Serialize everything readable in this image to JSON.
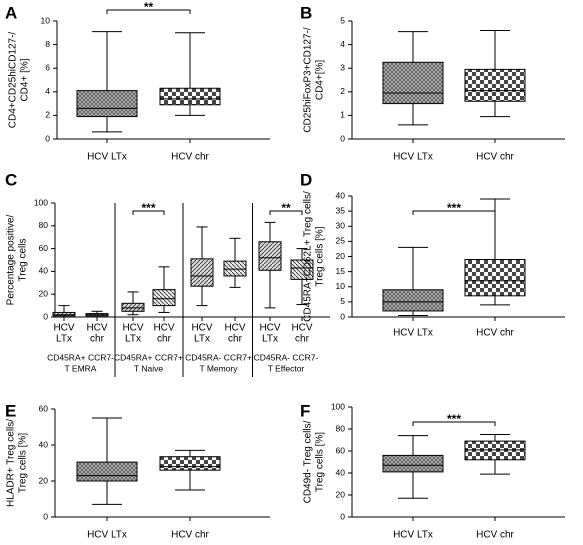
{
  "chart_data": [
    {
      "type": "box",
      "panel": "A",
      "ylabel": [
        "CD4+CD25hiCD127-/",
        "CD4+ [%]"
      ],
      "categories": [
        "HCV LTx",
        "HCV chr"
      ],
      "boxes": [
        {
          "min": 0.6,
          "q1": 1.9,
          "median": 2.6,
          "q3": 4.1,
          "max": 9.1
        },
        {
          "min": 2.0,
          "q1": 2.9,
          "median": 3.4,
          "q3": 4.3,
          "max": 9.0
        }
      ],
      "significance": "**",
      "ylim": [
        0,
        10
      ],
      "yticks": [
        0,
        2,
        4,
        6,
        8,
        10
      ]
    },
    {
      "type": "box",
      "panel": "B",
      "ylabel": [
        "CD25hiFoxP3+CD127-/",
        "CD4+[%]"
      ],
      "categories": [
        "HCV LTx",
        "HCV chr"
      ],
      "boxes": [
        {
          "min": 0.6,
          "q1": 1.5,
          "median": 1.95,
          "q3": 3.25,
          "max": 4.55
        },
        {
          "min": 0.95,
          "q1": 1.6,
          "median": 2.05,
          "q3": 2.95,
          "max": 4.6
        }
      ],
      "ylim": [
        0,
        5
      ],
      "yticks": [
        0,
        1,
        2,
        3,
        4,
        5
      ]
    },
    {
      "type": "box",
      "panel": "C",
      "ylabel": [
        "Percentage positive/",
        "Treg cells"
      ],
      "groups": [
        {
          "label": [
            "CD45RA+ CCR7-",
            "T EMRA"
          ],
          "categories": [
            [
              "HCV",
              "LTx"
            ],
            [
              "HCV",
              "chr"
            ]
          ],
          "boxes": [
            {
              "min": 0,
              "q1": 1,
              "median": 2,
              "q3": 4,
              "max": 10
            },
            {
              "min": 0,
              "q1": 1,
              "median": 2,
              "q3": 3,
              "max": 5
            }
          ]
        },
        {
          "label": [
            "CD45RA+ CCR7+",
            "T Naive"
          ],
          "categories": [
            [
              "HCV",
              "LTx"
            ],
            [
              "HCV",
              "chr"
            ]
          ],
          "boxes": [
            {
              "min": 2,
              "q1": 5,
              "median": 8,
              "q3": 12,
              "max": 22
            },
            {
              "min": 4,
              "q1": 10,
              "median": 16,
              "q3": 24,
              "max": 44
            }
          ],
          "significance": "***"
        },
        {
          "label": [
            "CD45RA- CCR7+",
            "T Memory"
          ],
          "categories": [
            [
              "HCV",
              "LTx"
            ],
            [
              "HCV",
              "chr"
            ]
          ],
          "boxes": [
            {
              "min": 10,
              "q1": 27,
              "median": 36,
              "q3": 51,
              "max": 79
            },
            {
              "min": 26,
              "q1": 36,
              "median": 42,
              "q3": 49,
              "max": 69
            }
          ]
        },
        {
          "label": [
            "CD45RA- CCR7-",
            "T Effector"
          ],
          "categories": [
            [
              "HCV",
              "LTx"
            ],
            [
              "HCV",
              "chr"
            ]
          ],
          "boxes": [
            {
              "min": 8,
              "q1": 41,
              "median": 52,
              "q3": 66,
              "max": 83
            },
            {
              "min": 11,
              "q1": 33,
              "median": 43,
              "q3": 50,
              "max": 60
            }
          ],
          "significance": "**"
        }
      ],
      "ylim": [
        0,
        100
      ],
      "yticks": [
        0,
        20,
        40,
        60,
        80,
        100
      ]
    },
    {
      "type": "box",
      "panel": "D",
      "ylabel": [
        "CD45RA+CD62L+ Treg cells/",
        "Treg cells [%]"
      ],
      "categories": [
        "HCV LTx",
        "HCV chr"
      ],
      "boxes": [
        {
          "min": 0.5,
          "q1": 2,
          "median": 5,
          "q3": 9,
          "max": 23
        },
        {
          "min": 4,
          "q1": 7,
          "median": 12,
          "q3": 19,
          "max": 39
        }
      ],
      "significance": "***",
      "ylim": [
        0,
        40
      ],
      "yticks": [
        0,
        5,
        10,
        15,
        20,
        25,
        30,
        35,
        40
      ]
    },
    {
      "type": "box",
      "panel": "E",
      "ylabel": [
        "HLADR+ Treg cells/",
        "Treg cells [%]"
      ],
      "categories": [
        "HCV LTx",
        "HCV chr"
      ],
      "boxes": [
        {
          "min": 7,
          "q1": 20,
          "median": 23,
          "q3": 30.5,
          "max": 55
        },
        {
          "min": 15,
          "q1": 26,
          "median": 28,
          "q3": 33.5,
          "max": 37
        }
      ],
      "ylim": [
        0,
        60
      ],
      "yticks": [
        0,
        20,
        40,
        60
      ]
    },
    {
      "type": "box",
      "panel": "F",
      "ylabel": [
        "CD49d- Treg cells/",
        "Treg cells [%]"
      ],
      "categories": [
        "HCV LTx",
        "HCV chr"
      ],
      "boxes": [
        {
          "min": 17,
          "q1": 41,
          "median": 47,
          "q3": 56,
          "max": 74
        },
        {
          "min": 39,
          "q1": 52,
          "median": 61,
          "q3": 69,
          "max": 75
        }
      ],
      "significance": "***",
      "ylim": [
        0,
        100
      ],
      "yticks": [
        0,
        20,
        40,
        60,
        80,
        100
      ]
    }
  ]
}
